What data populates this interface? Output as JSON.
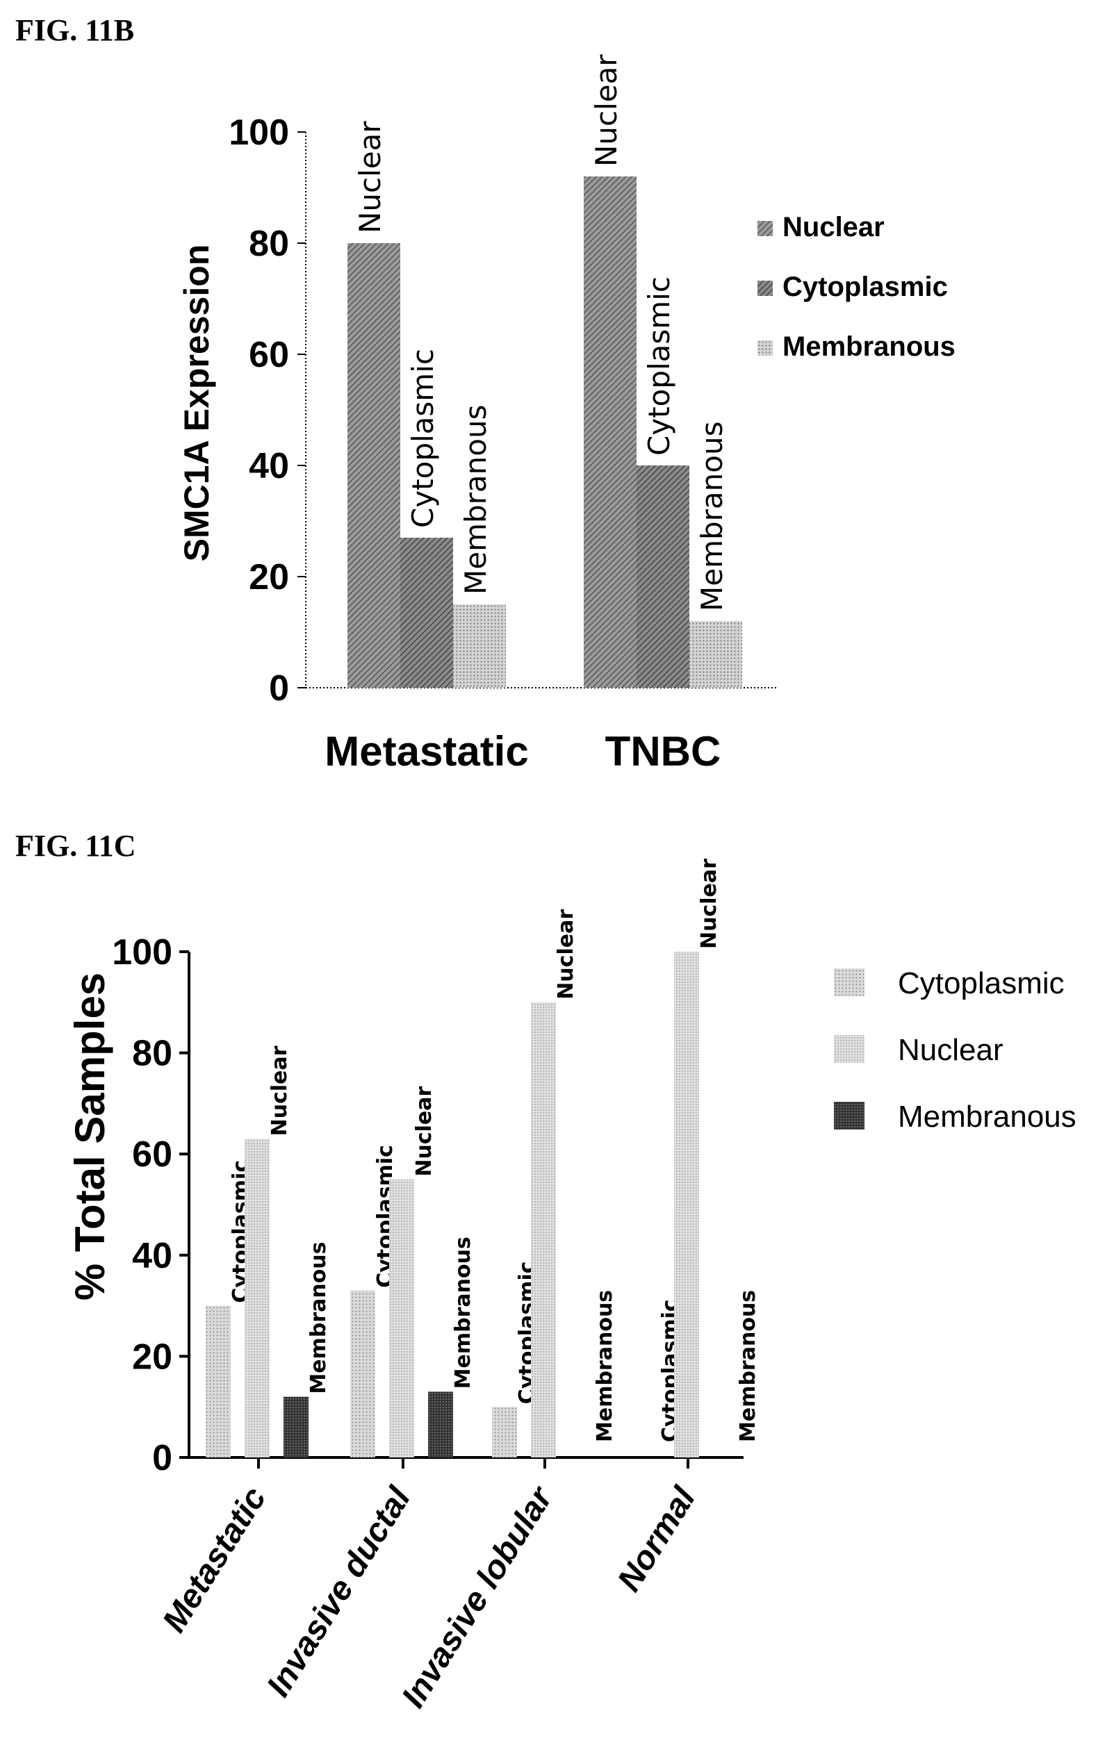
{
  "colors": {
    "nuclear_b": "#8a8a8a",
    "cyto_b": "#777777",
    "membr_b": "#c8c8c8",
    "cyto_c": "#c4c4c4",
    "nuclear_c": "#cfcfcf",
    "membr_c": "#3a3a3a"
  },
  "chart_data": [
    {
      "figure_label": "FIG. 11B",
      "type": "bar",
      "ylabel": "SMC1A  Expression",
      "ylim": [
        0,
        100
      ],
      "yticks": [
        "0",
        "20",
        "40",
        "60",
        "80",
        "100"
      ],
      "categories": [
        "Metastatic",
        "TNBC"
      ],
      "series": [
        {
          "name": "Nuclear",
          "values": [
            80,
            92
          ]
        },
        {
          "name": "Cytoplasmic",
          "values": [
            27,
            40
          ]
        },
        {
          "name": "Membranous",
          "values": [
            15,
            12
          ]
        }
      ],
      "grid": false,
      "legend": "right"
    },
    {
      "figure_label": "FIG. 11C",
      "type": "bar",
      "ylabel": "% Total Samples",
      "ylim": [
        0,
        100
      ],
      "yticks": [
        "0",
        "20",
        "40",
        "60",
        "80",
        "100"
      ],
      "categories": [
        "Metastatic",
        "Invasive ductal",
        "Invasive lobular",
        "Normal"
      ],
      "series": [
        {
          "name": "Cytoplasmic",
          "values": [
            30,
            33,
            10,
            0
          ]
        },
        {
          "name": "Nuclear",
          "values": [
            63,
            55,
            90,
            100
          ]
        },
        {
          "name": "Membranous",
          "values": [
            12,
            13,
            0,
            0
          ]
        }
      ],
      "grid": false,
      "legend": "right"
    }
  ]
}
